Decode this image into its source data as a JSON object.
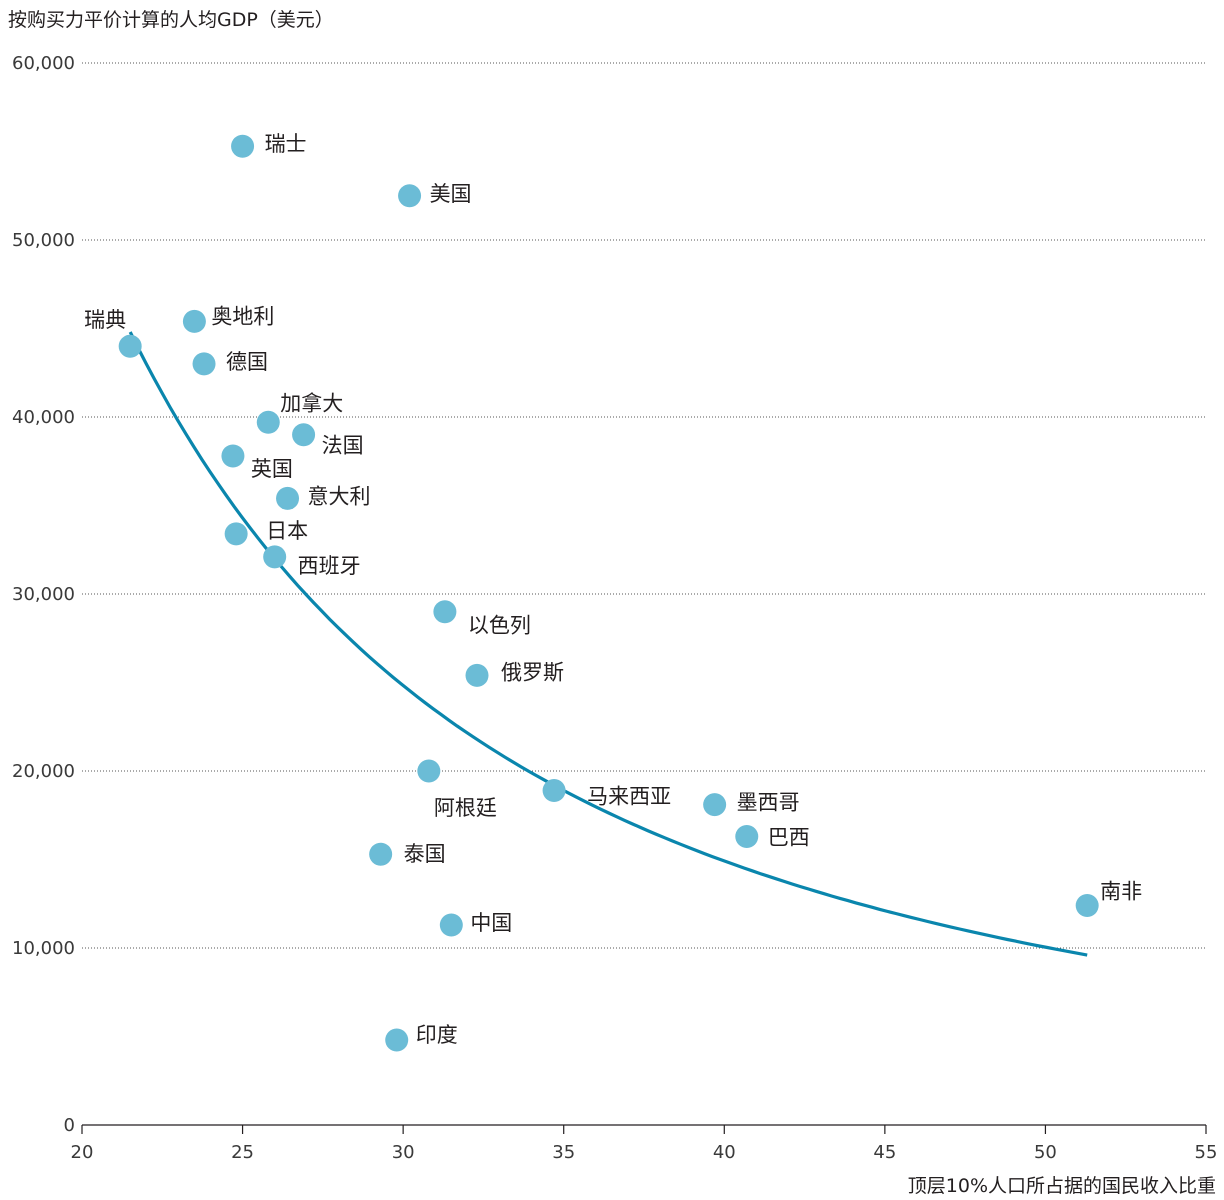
{
  "chart_data": {
    "type": "scatter",
    "ylabel": "按购买力平价计算的人均GDP（美元）",
    "xlabel": "顶层10%人口所占据的国民收入比重",
    "xlim": [
      20,
      55
    ],
    "ylim": [
      0,
      60000
    ],
    "xticks": [
      "20",
      "25",
      "30",
      "35",
      "40",
      "45",
      "50",
      "55"
    ],
    "yticks": [
      "0",
      "10,000",
      "20,000",
      "30,000",
      "40,000",
      "50,000",
      "60,000"
    ],
    "grid": "horizontal dotted",
    "point_color": "#6bbcd6",
    "curve_color": "#0a86ad",
    "points": [
      {
        "label": "瑞士",
        "x": 25.0,
        "y": 55300
      },
      {
        "label": "美国",
        "x": 30.2,
        "y": 52500
      },
      {
        "label": "瑞典",
        "x": 21.5,
        "y": 44000
      },
      {
        "label": "奥地利",
        "x": 23.5,
        "y": 45400
      },
      {
        "label": "德国",
        "x": 23.8,
        "y": 43000
      },
      {
        "label": "加拿大",
        "x": 25.8,
        "y": 39700
      },
      {
        "label": "法国",
        "x": 26.9,
        "y": 39000
      },
      {
        "label": "英国",
        "x": 24.7,
        "y": 37800
      },
      {
        "label": "意大利",
        "x": 26.4,
        "y": 35400
      },
      {
        "label": "日本",
        "x": 24.8,
        "y": 33400
      },
      {
        "label": "西班牙",
        "x": 26.0,
        "y": 32100
      },
      {
        "label": "以色列",
        "x": 31.3,
        "y": 29000
      },
      {
        "label": "俄罗斯",
        "x": 32.3,
        "y": 25400
      },
      {
        "label": "阿根廷",
        "x": 30.8,
        "y": 20000
      },
      {
        "label": "马来西亚",
        "x": 34.7,
        "y": 18900
      },
      {
        "label": "墨西哥",
        "x": 39.7,
        "y": 18100
      },
      {
        "label": "巴西",
        "x": 40.7,
        "y": 16300
      },
      {
        "label": "泰国",
        "x": 29.3,
        "y": 15300
      },
      {
        "label": "南非",
        "x": 51.3,
        "y": 12400
      },
      {
        "label": "中国",
        "x": 31.5,
        "y": 11300
      },
      {
        "label": "印度",
        "x": 29.8,
        "y": 4800
      }
    ],
    "trend": {
      "x_start": 21.5,
      "y_start": 44800,
      "x_end": 51.3,
      "y_end": 9600
    }
  }
}
